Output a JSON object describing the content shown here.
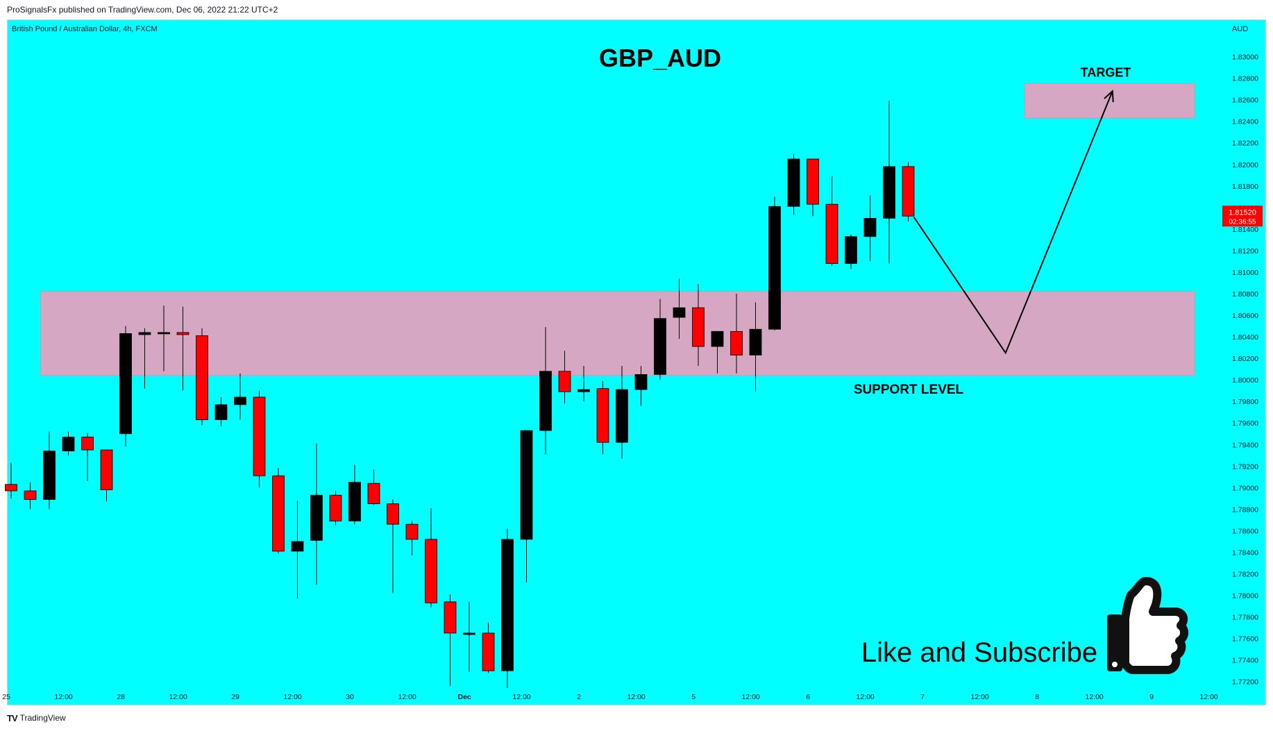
{
  "header": {
    "published_text": "ProSignalsFx published on TradingView.com, Dec 06, 2022 21:22 UTC+2"
  },
  "footer": {
    "logo": "TV",
    "label": "TradingView"
  },
  "chart_data": {
    "type": "candlestick",
    "symbol_label": "British Pound / Australian Dollar, 4h, FXCM",
    "title": "GBP_AUD",
    "currency": "AUD",
    "ylim": [
      1.7714,
      1.8321
    ],
    "y_ticks": [
      "1.83000",
      "1.82800",
      "1.82600",
      "1.82400",
      "1.82200",
      "1.82000",
      "1.81800",
      "1.81600",
      "1.81400",
      "1.81200",
      "1.81000",
      "1.80800",
      "1.80600",
      "1.80400",
      "1.80200",
      "1.80000",
      "1.79800",
      "1.79600",
      "1.79400",
      "1.79200",
      "1.79000",
      "1.78800",
      "1.78600",
      "1.78400",
      "1.78200",
      "1.78000",
      "1.77800",
      "1.77600",
      "1.77400",
      "1.77200"
    ],
    "x_ticks": [
      {
        "i": -0.25,
        "label": "25"
      },
      {
        "i": 2.75,
        "label": "12:00"
      },
      {
        "i": 5.75,
        "label": "28"
      },
      {
        "i": 8.75,
        "label": "12:00"
      },
      {
        "i": 11.75,
        "label": "29"
      },
      {
        "i": 14.75,
        "label": "12:00"
      },
      {
        "i": 17.75,
        "label": "30"
      },
      {
        "i": 20.75,
        "label": "12:00"
      },
      {
        "i": 23.75,
        "label": "Dec",
        "bold": true
      },
      {
        "i": 26.75,
        "label": "12:00"
      },
      {
        "i": 29.75,
        "label": "2"
      },
      {
        "i": 32.75,
        "label": "12:00"
      },
      {
        "i": 35.75,
        "label": "5"
      },
      {
        "i": 38.75,
        "label": "12:00"
      },
      {
        "i": 41.75,
        "label": "6"
      },
      {
        "i": 44.75,
        "label": "12:00"
      },
      {
        "i": 47.75,
        "label": "7"
      },
      {
        "i": 50.75,
        "label": "12:00"
      },
      {
        "i": 53.75,
        "label": "8"
      },
      {
        "i": 56.75,
        "label": "12:00"
      },
      {
        "i": 59.75,
        "label": "9"
      },
      {
        "i": 62.75,
        "label": "12:00"
      }
    ],
    "candles": [
      {
        "o": 1.7903,
        "h": 1.7923,
        "l": 1.789,
        "c": 1.7897
      },
      {
        "o": 1.7897,
        "h": 1.7905,
        "l": 1.788,
        "c": 1.7889
      },
      {
        "o": 1.7889,
        "h": 1.7952,
        "l": 1.788,
        "c": 1.7934
      },
      {
        "o": 1.7934,
        "h": 1.7952,
        "l": 1.793,
        "c": 1.7947
      },
      {
        "o": 1.7947,
        "h": 1.7951,
        "l": 1.7906,
        "c": 1.7935
      },
      {
        "o": 1.7935,
        "h": 1.7934,
        "l": 1.7887,
        "c": 1.7898
      },
      {
        "o": 1.795,
        "h": 1.805,
        "l": 1.7938,
        "c": 1.8043
      },
      {
        "o": 1.8042,
        "h": 1.8048,
        "l": 1.7992,
        "c": 1.8044
      },
      {
        "o": 1.8043,
        "h": 1.8069,
        "l": 1.8008,
        "c": 1.8044
      },
      {
        "o": 1.8044,
        "h": 1.8068,
        "l": 1.799,
        "c": 1.8042
      },
      {
        "o": 1.8041,
        "h": 1.8048,
        "l": 1.7958,
        "c": 1.7963
      },
      {
        "o": 1.7963,
        "h": 1.7984,
        "l": 1.7957,
        "c": 1.7977
      },
      {
        "o": 1.7977,
        "h": 1.8006,
        "l": 1.7963,
        "c": 1.7984
      },
      {
        "o": 1.7984,
        "h": 1.799,
        "l": 1.79,
        "c": 1.7911
      },
      {
        "o": 1.7911,
        "h": 1.7918,
        "l": 1.7839,
        "c": 1.7841
      },
      {
        "o": 1.7841,
        "h": 1.7888,
        "l": 1.7797,
        "c": 1.785
      },
      {
        "o": 1.7851,
        "h": 1.7941,
        "l": 1.781,
        "c": 1.7893
      },
      {
        "o": 1.7893,
        "h": 1.7897,
        "l": 1.7865,
        "c": 1.7869
      },
      {
        "o": 1.7869,
        "h": 1.7921,
        "l": 1.7866,
        "c": 1.7905
      },
      {
        "o": 1.7904,
        "h": 1.7917,
        "l": 1.7884,
        "c": 1.7885
      },
      {
        "o": 1.7885,
        "h": 1.7889,
        "l": 1.7802,
        "c": 1.7866
      },
      {
        "o": 1.7866,
        "h": 1.7869,
        "l": 1.7837,
        "c": 1.7852
      },
      {
        "o": 1.7852,
        "h": 1.7881,
        "l": 1.7789,
        "c": 1.7793
      },
      {
        "o": 1.7794,
        "h": 1.7801,
        "l": 1.7716,
        "c": 1.7765
      },
      {
        "o": 1.7765,
        "h": 1.7794,
        "l": 1.7729,
        "c": 1.7765
      },
      {
        "o": 1.7765,
        "h": 1.7775,
        "l": 1.7728,
        "c": 1.773
      },
      {
        "o": 1.773,
        "h": 1.7862,
        "l": 1.7714,
        "c": 1.7852
      },
      {
        "o": 1.7852,
        "h": 1.7953,
        "l": 1.7812,
        "c": 1.7953
      },
      {
        "o": 1.7953,
        "h": 1.8049,
        "l": 1.7931,
        "c": 1.8008
      },
      {
        "o": 1.8008,
        "h": 1.8027,
        "l": 1.7978,
        "c": 1.7989
      },
      {
        "o": 1.7989,
        "h": 1.8013,
        "l": 1.798,
        "c": 1.7991
      },
      {
        "o": 1.7992,
        "h": 1.7999,
        "l": 1.7931,
        "c": 1.7942
      },
      {
        "o": 1.7942,
        "h": 1.8013,
        "l": 1.7927,
        "c": 1.7991
      },
      {
        "o": 1.7991,
        "h": 1.8013,
        "l": 1.7976,
        "c": 1.8005
      },
      {
        "o": 1.8005,
        "h": 1.8075,
        "l": 1.8,
        "c": 1.8057
      },
      {
        "o": 1.8058,
        "h": 1.8094,
        "l": 1.8038,
        "c": 1.8067
      },
      {
        "o": 1.8067,
        "h": 1.8089,
        "l": 1.8013,
        "c": 1.8031
      },
      {
        "o": 1.8031,
        "h": 1.8044,
        "l": 1.8006,
        "c": 1.8045
      },
      {
        "o": 1.8045,
        "h": 1.808,
        "l": 1.8006,
        "c": 1.8023
      },
      {
        "o": 1.8023,
        "h": 1.8072,
        "l": 1.7989,
        "c": 1.8047
      },
      {
        "o": 1.8047,
        "h": 1.817,
        "l": 1.8046,
        "c": 1.8161
      },
      {
        "o": 1.8161,
        "h": 1.821,
        "l": 1.8153,
        "c": 1.8205
      },
      {
        "o": 1.8205,
        "h": 1.8205,
        "l": 1.8152,
        "c": 1.8163
      },
      {
        "o": 1.8163,
        "h": 1.8189,
        "l": 1.8106,
        "c": 1.8108
      },
      {
        "o": 1.8108,
        "h": 1.8135,
        "l": 1.8103,
        "c": 1.8133
      },
      {
        "o": 1.8133,
        "h": 1.8171,
        "l": 1.811,
        "c": 1.815
      },
      {
        "o": 1.815,
        "h": 1.8259,
        "l": 1.8108,
        "c": 1.8198
      },
      {
        "o": 1.8198,
        "h": 1.8202,
        "l": 1.8147,
        "c": 1.8152
      }
    ],
    "zones": [
      {
        "name": "support-zone",
        "start_i": 1.55,
        "end_i": 62.0,
        "top": 1.8082,
        "bottom": 1.8004
      },
      {
        "name": "target-zone",
        "start_i": 53.1,
        "end_i": 62.0,
        "top": 1.8275,
        "bottom": 1.8243
      }
    ],
    "projection_path": [
      {
        "i": 47.3,
        "p": 1.8151
      },
      {
        "i": 52.1,
        "p": 1.8025
      },
      {
        "i": 57.7,
        "p": 1.8268
      }
    ],
    "labels": {
      "support": "SUPPORT LEVEL",
      "target": "TARGET"
    },
    "last_price": {
      "value": "1.81520",
      "countdown": "02:36:55"
    },
    "promo_text": "Like and Subscribe",
    "colors": {
      "background": "#00ffff",
      "bull": "#000000",
      "bear": "#ff0000",
      "zone": "#d6a7c2",
      "price_tag": "#ff0000"
    },
    "icons": [
      "thumbs-up-icon"
    ]
  }
}
